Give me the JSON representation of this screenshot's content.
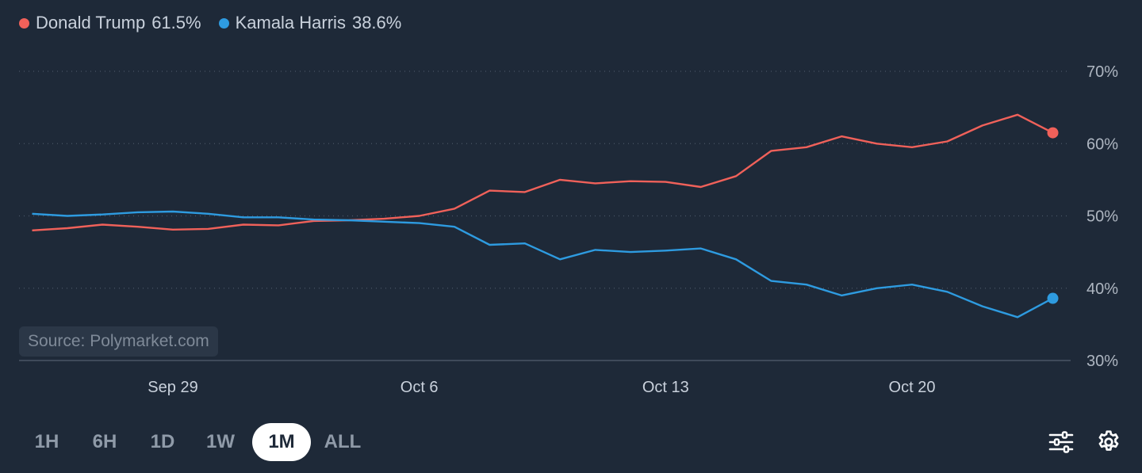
{
  "legend": [
    {
      "name": "Donald Trump",
      "value": "61.5%",
      "color": "#f0615a"
    },
    {
      "name": "Kamala Harris",
      "value": "38.6%",
      "color": "#2e9be0"
    }
  ],
  "source": "Source: Polymarket.com",
  "range_buttons": [
    "1H",
    "6H",
    "1D",
    "1W",
    "1M",
    "ALL"
  ],
  "active_range": "1M",
  "icons": {
    "filter": "sliders-icon",
    "settings": "gear-icon"
  },
  "chart_data": {
    "type": "line",
    "x_ticks": [
      "Sep 29",
      "Oct 6",
      "Oct 13",
      "Oct 20"
    ],
    "y_ticks": [
      "30%",
      "40%",
      "50%",
      "60%",
      "70%"
    ],
    "ylim": [
      30,
      70
    ],
    "xlim_days": [
      "Sep 25",
      "Oct 24"
    ],
    "grid": "dotted horizontal",
    "y_axis_position": "right",
    "series": [
      {
        "name": "Donald Trump",
        "color": "#f0615a",
        "points": [
          [
            "Sep 25",
            48.0
          ],
          [
            "Sep 26",
            48.3
          ],
          [
            "Sep 27",
            48.8
          ],
          [
            "Sep 28",
            48.5
          ],
          [
            "Sep 29",
            48.1
          ],
          [
            "Sep 30",
            48.2
          ],
          [
            "Oct 1",
            48.8
          ],
          [
            "Oct 2",
            48.7
          ],
          [
            "Oct 3",
            49.3
          ],
          [
            "Oct 4",
            49.4
          ],
          [
            "Oct 5",
            49.6
          ],
          [
            "Oct 6",
            50.0
          ],
          [
            "Oct 7",
            51.0
          ],
          [
            "Oct 8",
            53.5
          ],
          [
            "Oct 9",
            53.3
          ],
          [
            "Oct 10",
            55.0
          ],
          [
            "Oct 11",
            54.5
          ],
          [
            "Oct 12",
            54.8
          ],
          [
            "Oct 13",
            54.7
          ],
          [
            "Oct 14",
            54.0
          ],
          [
            "Oct 15",
            55.5
          ],
          [
            "Oct 16",
            59.0
          ],
          [
            "Oct 17",
            59.5
          ],
          [
            "Oct 18",
            61.0
          ],
          [
            "Oct 19",
            60.0
          ],
          [
            "Oct 20",
            59.5
          ],
          [
            "Oct 21",
            60.3
          ],
          [
            "Oct 22",
            62.5
          ],
          [
            "Oct 23",
            64.0
          ],
          [
            "Oct 24",
            61.5
          ]
        ]
      },
      {
        "name": "Kamala Harris",
        "color": "#2e9be0",
        "points": [
          [
            "Sep 25",
            50.3
          ],
          [
            "Sep 26",
            50.0
          ],
          [
            "Sep 27",
            50.2
          ],
          [
            "Sep 28",
            50.5
          ],
          [
            "Sep 29",
            50.6
          ],
          [
            "Sep 30",
            50.3
          ],
          [
            "Oct 1",
            49.8
          ],
          [
            "Oct 2",
            49.8
          ],
          [
            "Oct 3",
            49.5
          ],
          [
            "Oct 4",
            49.4
          ],
          [
            "Oct 5",
            49.2
          ],
          [
            "Oct 6",
            49.0
          ],
          [
            "Oct 7",
            48.5
          ],
          [
            "Oct 8",
            46.0
          ],
          [
            "Oct 9",
            46.2
          ],
          [
            "Oct 10",
            44.0
          ],
          [
            "Oct 11",
            45.3
          ],
          [
            "Oct 12",
            45.0
          ],
          [
            "Oct 13",
            45.2
          ],
          [
            "Oct 14",
            45.5
          ],
          [
            "Oct 15",
            44.0
          ],
          [
            "Oct 16",
            41.0
          ],
          [
            "Oct 17",
            40.5
          ],
          [
            "Oct 18",
            39.0
          ],
          [
            "Oct 19",
            40.0
          ],
          [
            "Oct 20",
            40.5
          ],
          [
            "Oct 21",
            39.5
          ],
          [
            "Oct 22",
            37.5
          ],
          [
            "Oct 23",
            36.0
          ],
          [
            "Oct 24",
            38.6
          ]
        ]
      }
    ]
  }
}
